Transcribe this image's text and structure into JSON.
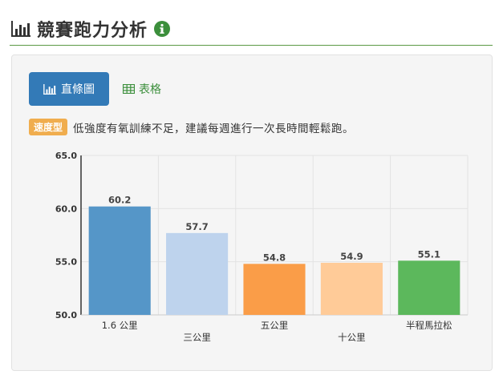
{
  "header": {
    "title": "競賽跑力分析",
    "icon": "bar-chart-icon",
    "info_icon": "info-icon"
  },
  "toolbar": {
    "chart_label": "直條圖",
    "table_label": "表格"
  },
  "hint": {
    "badge": "速度型",
    "text": "低強度有氧訓練不足，建議每週進行一次長時間輕鬆跑。"
  },
  "colors": {
    "accent": "#337ab7",
    "divider": "#5c9a45",
    "badge": "#f0ad4e",
    "table_link": "#3c8f3c"
  },
  "chart_data": {
    "type": "bar",
    "categories": [
      "1.6 公里",
      "三公里",
      "五公里",
      "十公里",
      "半程馬拉松"
    ],
    "values": [
      60.2,
      57.7,
      54.8,
      54.9,
      55.1
    ],
    "value_labels": [
      "60.2",
      "57.7",
      "54.8",
      "54.9",
      "55.1"
    ],
    "colors": [
      "#5596c8",
      "#bed3ed",
      "#fa9d48",
      "#ffcb98",
      "#5cb85c"
    ],
    "ylim": [
      50,
      65
    ],
    "yticks": [
      "50.0",
      "55.0",
      "60.0",
      "65.0"
    ],
    "ytick_values": [
      50,
      55,
      60,
      65
    ],
    "grid": true
  }
}
